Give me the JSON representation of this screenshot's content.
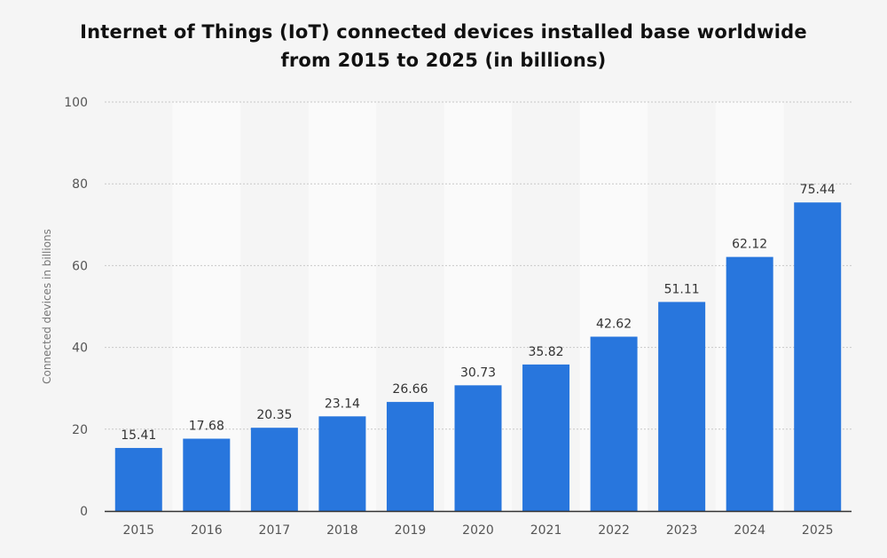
{
  "chart_data": {
    "type": "bar",
    "title_lines": [
      "Internet of Things (IoT) connected devices installed base worldwide",
      "from 2015 to 2025 (in billions)"
    ],
    "xlabel": "",
    "ylabel": "Connected devices in billions",
    "categories": [
      "2015",
      "2016",
      "2017",
      "2018",
      "2019",
      "2020",
      "2021",
      "2022",
      "2023",
      "2024",
      "2025"
    ],
    "values": [
      15.41,
      17.68,
      20.35,
      23.14,
      26.66,
      30.73,
      35.82,
      42.62,
      51.11,
      62.12,
      75.44
    ],
    "data_labels": [
      "15.41",
      "17.68",
      "20.35",
      "23.14",
      "26.66",
      "30.73",
      "35.82",
      "42.62",
      "51.11",
      "62.12",
      "75.44"
    ],
    "ylim": [
      0,
      100
    ],
    "yticks": [
      0,
      20,
      40,
      60,
      80,
      100
    ],
    "ytick_labels": [
      "0",
      "20",
      "40",
      "60",
      "80",
      "100"
    ],
    "grid": true,
    "legend": "none",
    "colors": {
      "bar": "#2876dd",
      "background": "#f5f5f5",
      "band_light": "#fafafa",
      "gridline": "#c8c8c8",
      "axis": "#333333"
    }
  }
}
